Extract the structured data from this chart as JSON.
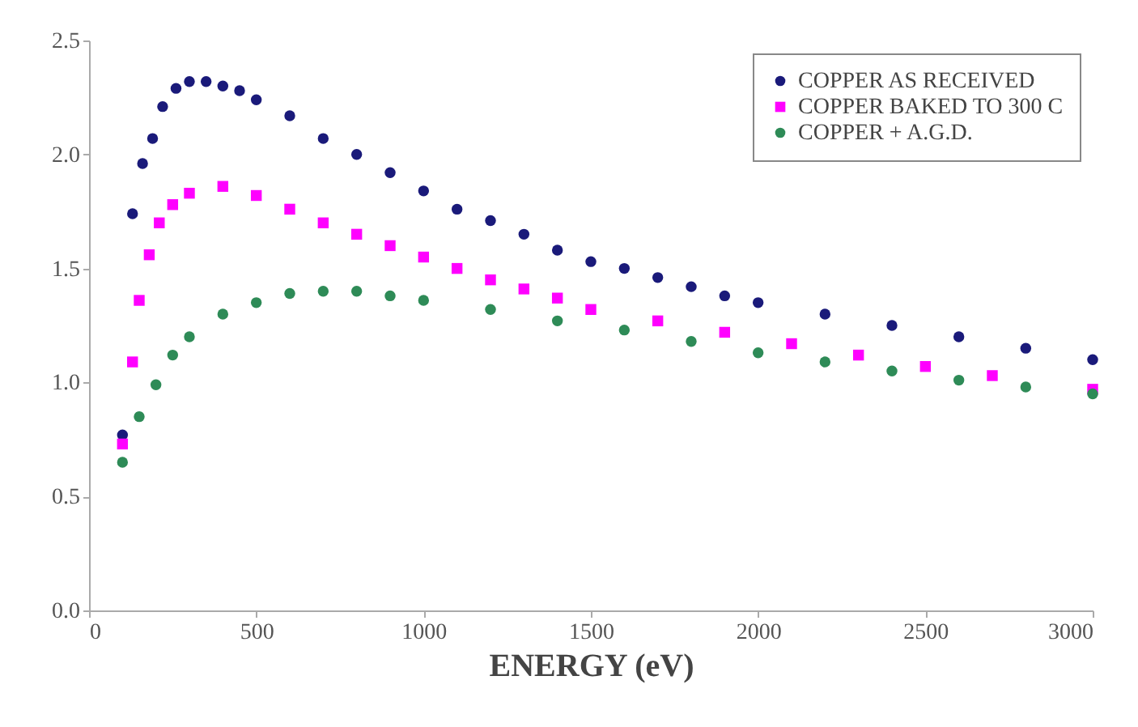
{
  "chart_data": {
    "type": "scatter",
    "xlabel": "ENERGY  (eV)",
    "xlim": [
      0,
      3000
    ],
    "xticks": [
      0,
      500,
      1000,
      1500,
      2000,
      2500,
      3000
    ],
    "ylim": [
      0,
      2.5
    ],
    "yticks": [
      {
        "value": 0,
        "label": "0.0"
      },
      {
        "value": 0.5,
        "label": "0.5"
      },
      {
        "value": 1,
        "label": "1.0"
      },
      {
        "value": 1.5,
        "label": "1.5"
      },
      {
        "value": 2,
        "label": "2.0"
      },
      {
        "value": 2.5,
        "label": "2.5"
      }
    ],
    "grid": false,
    "legend": "top right",
    "series": [
      {
        "name": "COPPER AS RECEIVED",
        "color": "#1a1a7a",
        "marker": "circle",
        "x": [
          100,
          130,
          160,
          190,
          220,
          260,
          300,
          350,
          400,
          450,
          500,
          600,
          700,
          800,
          900,
          1000,
          1100,
          1200,
          1300,
          1400,
          1500,
          1600,
          1700,
          1800,
          1900,
          2000,
          2200,
          2400,
          2600,
          2800,
          3000
        ],
        "values": [
          0.77,
          1.74,
          1.96,
          2.07,
          2.21,
          2.29,
          2.32,
          2.32,
          2.3,
          2.28,
          2.24,
          2.17,
          2.07,
          2.0,
          1.92,
          1.84,
          1.76,
          1.71,
          1.65,
          1.58,
          1.53,
          1.5,
          1.46,
          1.42,
          1.38,
          1.35,
          1.3,
          1.25,
          1.2,
          1.15,
          1.1
        ]
      },
      {
        "name": "COPPER BAKED TO 300 C",
        "color": "#ff00ff",
        "marker": "square",
        "x": [
          100,
          130,
          150,
          180,
          210,
          250,
          300,
          400,
          500,
          600,
          700,
          800,
          900,
          1000,
          1100,
          1200,
          1300,
          1400,
          1500,
          1700,
          1900,
          2100,
          2300,
          2500,
          2700,
          3000
        ],
        "values": [
          0.73,
          1.09,
          1.36,
          1.56,
          1.7,
          1.78,
          1.83,
          1.86,
          1.82,
          1.76,
          1.7,
          1.65,
          1.6,
          1.55,
          1.5,
          1.45,
          1.41,
          1.37,
          1.32,
          1.27,
          1.22,
          1.17,
          1.12,
          1.07,
          1.03,
          0.97
        ]
      },
      {
        "name": "COPPER + A.G.D.",
        "color": "#2e8b57",
        "marker": "circle",
        "x": [
          100,
          150,
          200,
          250,
          300,
          400,
          500,
          600,
          700,
          800,
          900,
          1000,
          1200,
          1400,
          1600,
          1800,
          2000,
          2200,
          2400,
          2600,
          2800,
          3000
        ],
        "values": [
          0.65,
          0.85,
          0.99,
          1.12,
          1.2,
          1.3,
          1.35,
          1.39,
          1.4,
          1.4,
          1.38,
          1.36,
          1.32,
          1.27,
          1.23,
          1.18,
          1.13,
          1.09,
          1.05,
          1.01,
          0.98,
          0.95
        ]
      }
    ]
  }
}
